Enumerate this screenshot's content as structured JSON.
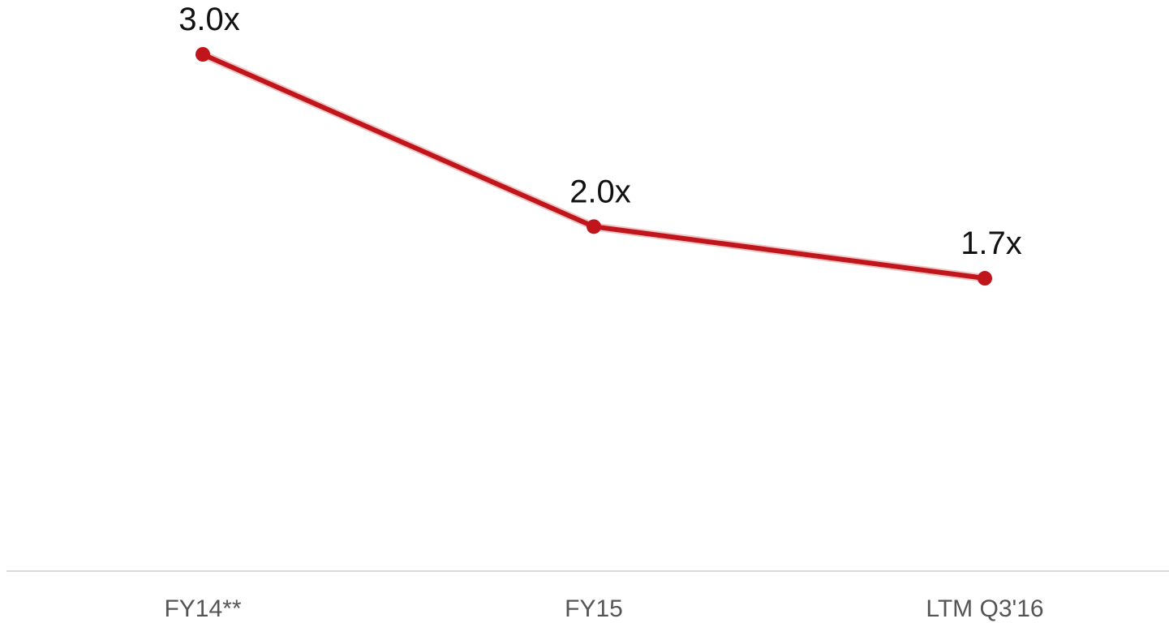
{
  "chart_data": {
    "type": "line",
    "categories": [
      "FY14**",
      "FY15",
      "LTM Q3'16"
    ],
    "series": [
      {
        "values": [
          3.0,
          2.0,
          1.7
        ],
        "data_labels": [
          "3.0x",
          "2.0x",
          "1.7x"
        ],
        "color": "#c0161b"
      }
    ],
    "title": "",
    "xlabel": "",
    "ylabel": "",
    "ylim": [
      0,
      3.3
    ],
    "grid": false,
    "legend": "none",
    "axis_color": "#d9d9d9"
  }
}
